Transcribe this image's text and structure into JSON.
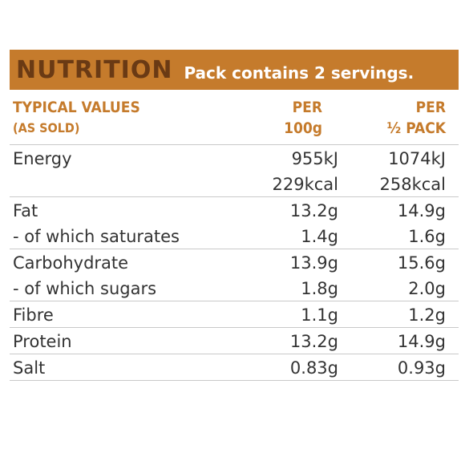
{
  "header": {
    "title": "NUTRITION",
    "subtitle": "Pack contains 2 servings."
  },
  "columns": {
    "label_line1": "TYPICAL VALUES",
    "label_line2": "(AS SOLD)",
    "col1_line1": "PER",
    "col1_line2": "100g",
    "col2_line1": "PER",
    "col2_line2": "½ PACK"
  },
  "groups": [
    {
      "rows": [
        {
          "label": "Energy",
          "per100": "955kJ",
          "perhalf": "1074kJ"
        },
        {
          "label": "",
          "per100": "229kcal",
          "perhalf": "258kcal"
        }
      ]
    },
    {
      "rows": [
        {
          "label": "Fat",
          "per100": "13.2g",
          "perhalf": "14.9g"
        },
        {
          "label": "- of which saturates",
          "per100": "1.4g",
          "perhalf": "1.6g"
        }
      ]
    },
    {
      "rows": [
        {
          "label": "Carbohydrate",
          "per100": "13.9g",
          "perhalf": "15.6g"
        },
        {
          "label": "- of which sugars",
          "per100": "1.8g",
          "perhalf": "2.0g"
        }
      ]
    },
    {
      "rows": [
        {
          "label": "Fibre",
          "per100": "1.1g",
          "perhalf": "1.2g"
        }
      ]
    },
    {
      "rows": [
        {
          "label": "Protein",
          "per100": "13.2g",
          "perhalf": "14.9g"
        }
      ]
    },
    {
      "rows": [
        {
          "label": "Salt",
          "per100": "0.83g",
          "perhalf": "0.93g"
        }
      ]
    }
  ],
  "colors": {
    "accent": "#c57b2c",
    "title_text": "#6a3a14",
    "body_text": "#333333"
  }
}
